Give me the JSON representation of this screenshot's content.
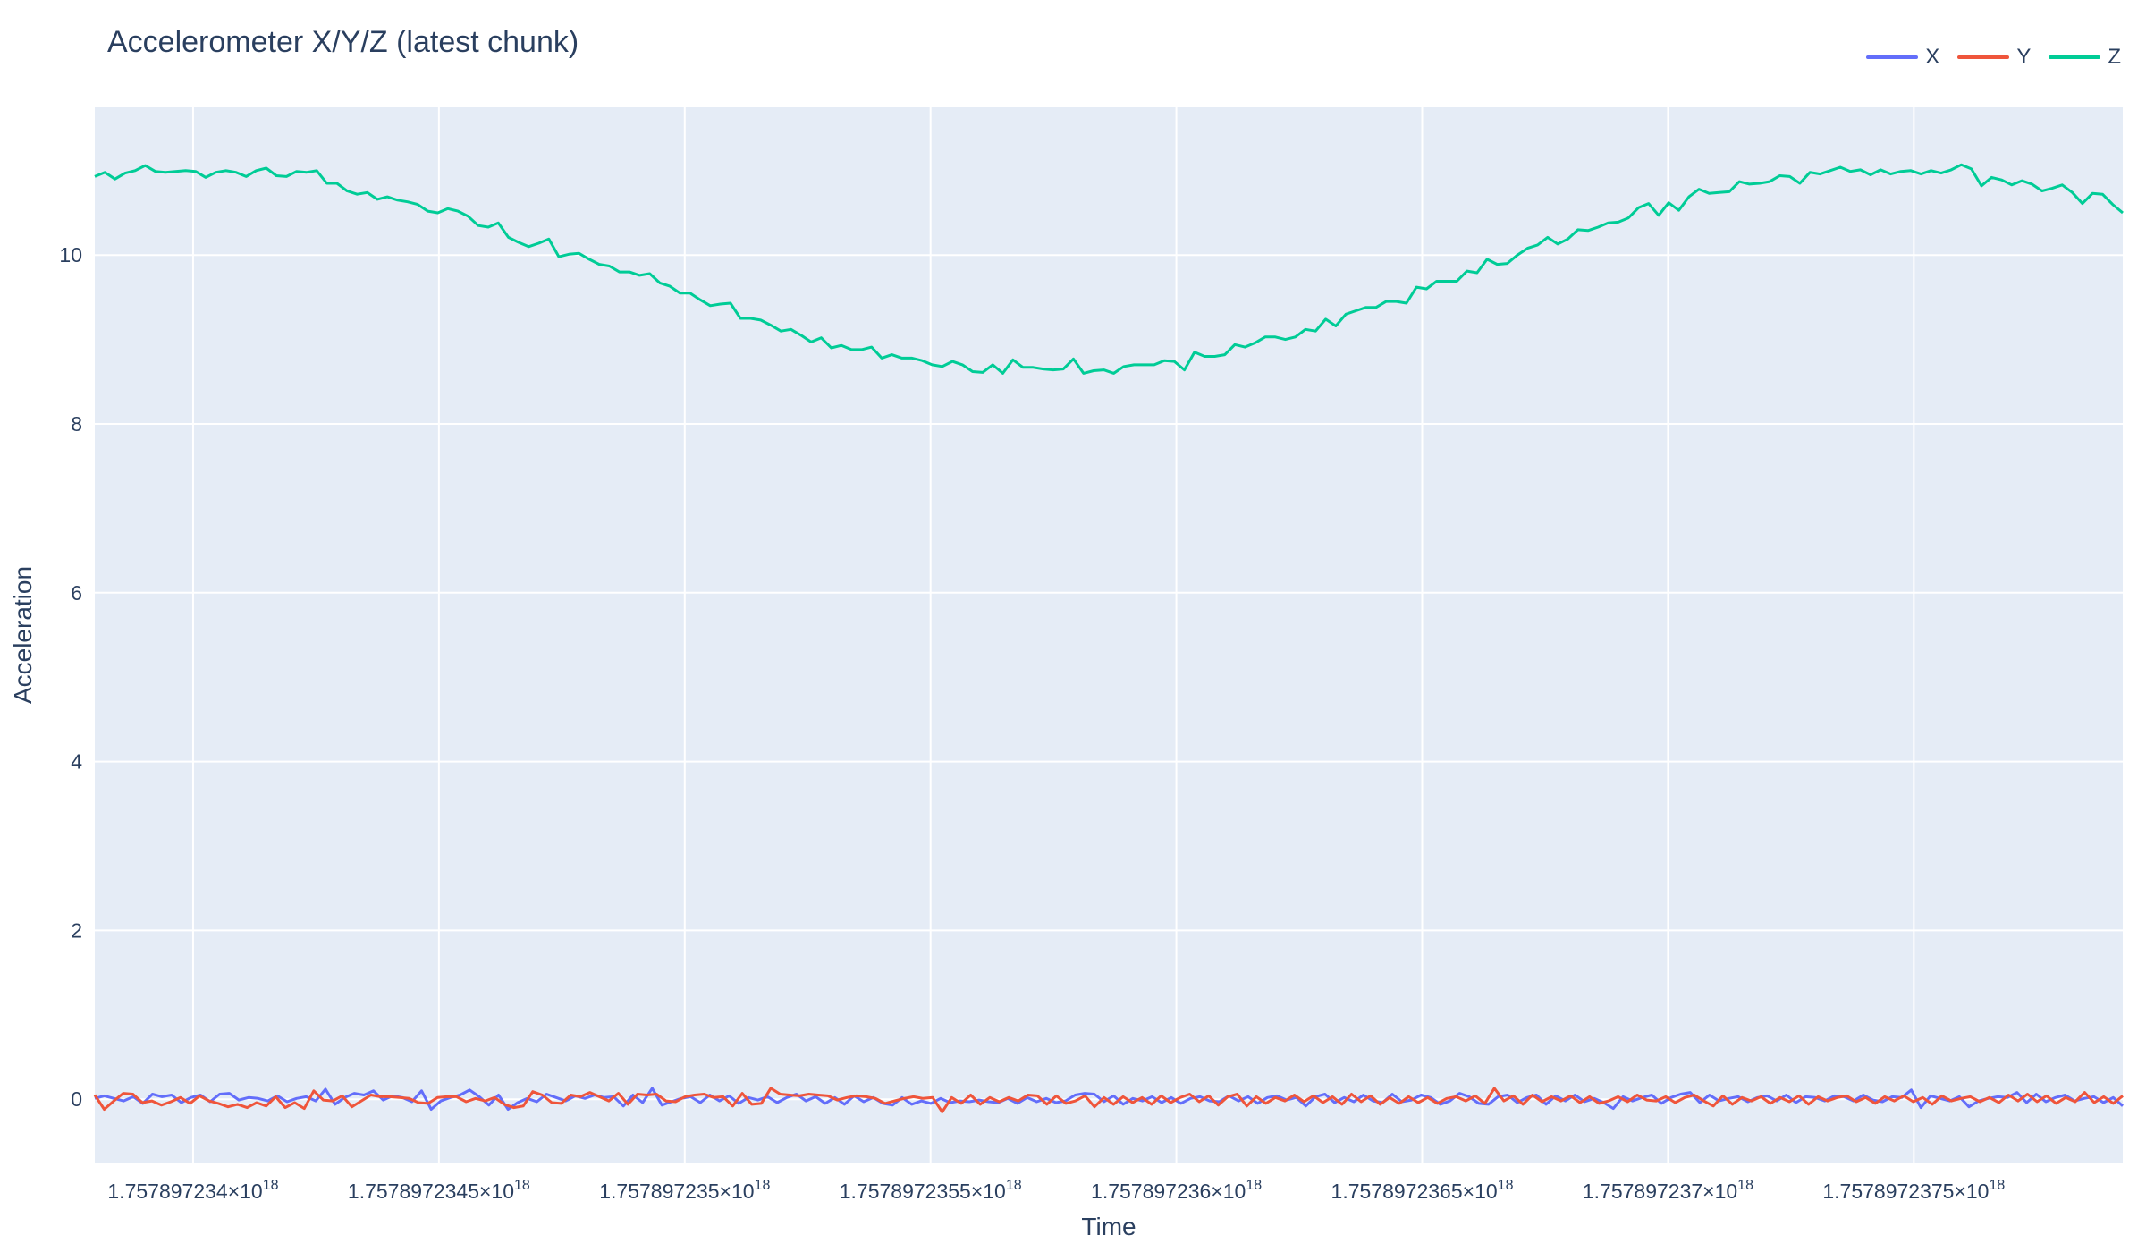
{
  "chart_data": {
    "type": "line",
    "title": "Accelerometer X/Y/Z (latest chunk)",
    "xlabel": "Time",
    "ylabel": "Acceleration",
    "x_range": [
      1.7578972338e+18,
      1.757897237925e+18
    ],
    "ylim": [
      -0.75,
      11.75
    ],
    "x_tick_values": [
      1.757897234e+18,
      1.7578972345e+18,
      1.757897235e+18,
      1.7578972355e+18,
      1.757897236e+18,
      1.7578972365e+18,
      1.757897237e+18,
      1.7578972375e+18
    ],
    "x_tick_labels": [
      [
        "1.757897234×10",
        "18"
      ],
      [
        "1.7578972345×10",
        "18"
      ],
      [
        "1.757897235×10",
        "18"
      ],
      [
        "1.7578972355×10",
        "18"
      ],
      [
        "1.757897236×10",
        "18"
      ],
      [
        "1.7578972365×10",
        "18"
      ],
      [
        "1.757897237×10",
        "18"
      ],
      [
        "1.7578972375×10",
        "18"
      ]
    ],
    "y_ticks": [
      0,
      2,
      4,
      6,
      8,
      10
    ],
    "y_tick_labels": [
      "0",
      "2",
      "4",
      "6",
      "8",
      "10"
    ],
    "grid": true,
    "legend_position": "top-right",
    "series": [
      {
        "name": "X",
        "color": "#636efa",
        "x_start": 1.7578972338e+18,
        "x_end": 1.757897237925e+18,
        "values": [
          0.01,
          0.04,
          0.01,
          -0.02,
          0.03,
          -0.05,
          0.06,
          0.03,
          0.05,
          -0.04,
          0.02,
          0.05,
          -0.03,
          0.06,
          0.07,
          -0.01,
          0.02,
          0.01,
          -0.02,
          0.04,
          -0.03,
          0.01,
          0.03,
          -0.02,
          0.12,
          -0.06,
          0.02,
          0.07,
          0.05,
          0.1,
          -0.01,
          0.04,
          0.02,
          -0.03,
          0.1,
          -0.12,
          -0.02,
          0.02,
          0.05,
          0.11,
          0.03,
          -0.07,
          0.05,
          -0.12,
          -0.04,
          0.01,
          -0.03,
          0.06,
          0.02,
          -0.02,
          0.04,
          0.01,
          0.05,
          0.02,
          0.03,
          -0.08,
          0.05,
          -0.04,
          0.13,
          -0.07,
          -0.03,
          0.01,
          0.03,
          -0.04,
          0.05,
          -0.02,
          0.04,
          -0.05,
          0.02,
          -0.01,
          0.03,
          -0.04,
          0.02,
          0.06,
          -0.02,
          0.03,
          -0.05,
          0.02,
          -0.06,
          0.04,
          -0.03,
          0.02,
          -0.05,
          -0.07,
          0.02,
          -0.06,
          -0.02,
          -0.05,
          0.01,
          -0.04,
          -0.02,
          -0.03,
          -0.01,
          -0.03,
          -0.04,
          0.01,
          -0.05,
          0.02,
          -0.03,
          0.01,
          -0.04,
          -0.02,
          0.05,
          0.07,
          0.06,
          -0.03,
          0.04,
          -0.06,
          0.01,
          -0.02,
          0.03,
          -0.04,
          0.02,
          -0.05,
          0.01,
          0.03,
          -0.02,
          -0.03,
          0.04,
          -0.02,
          0.03,
          -0.05,
          0.02,
          0.04,
          -0.01,
          0.02,
          -0.08,
          0.03,
          0.06,
          -0.04,
          0.02,
          -0.03,
          0.05,
          -0.02,
          -0.04,
          0.06,
          -0.03,
          -0.01,
          0.05,
          0.02,
          -0.06,
          -0.02,
          0.07,
          0.03,
          -0.05,
          -0.06,
          0.03,
          0.05,
          -0.04,
          0.02,
          0.05,
          -0.06,
          0.04,
          -0.02,
          0.05,
          -0.03,
          0.01,
          -0.04,
          -0.11,
          0.03,
          -0.02,
          0.02,
          0.05,
          -0.05,
          0.02,
          0.06,
          0.08,
          -0.04,
          0.05,
          -0.02,
          0.01,
          0.03,
          -0.03,
          0.02,
          0.04,
          -0.02,
          0.05,
          -0.04,
          0.03,
          0.02,
          -0.02,
          0.04,
          0.03,
          -0.02,
          0.05,
          -0.01,
          -0.03,
          0.03,
          0.02,
          0.11,
          -0.1,
          0.04,
          0.01,
          -0.02,
          0.03,
          -0.09,
          -0.02,
          0.01,
          0.03,
          0.02,
          0.08,
          -0.04,
          0.06,
          -0.03,
          0.02,
          0.05,
          -0.02,
          0.01,
          0.03,
          -0.04,
          0.02,
          -0.08
        ],
        "_": ""
      },
      {
        "name": "Y",
        "color": "#ef553b",
        "x_start": 1.7578972338e+18,
        "x_end": 1.757897237925e+18,
        "values": [
          0.05,
          -0.12,
          -0.02,
          0.07,
          0.06,
          -0.04,
          -0.02,
          -0.07,
          -0.03,
          0.02,
          -0.05,
          0.04,
          -0.02,
          -0.05,
          -0.09,
          -0.06,
          -0.1,
          -0.04,
          -0.08,
          0.03,
          -0.1,
          -0.04,
          -0.11,
          0.1,
          -0.01,
          -0.02,
          0.04,
          -0.09,
          -0.02,
          0.05,
          0.03,
          0.03,
          0.02,
          0.01,
          -0.04,
          -0.05,
          0.02,
          0.03,
          0.03,
          -0.03,
          0.01,
          -0.02,
          0.02,
          -0.06,
          -0.1,
          -0.08,
          0.09,
          0.05,
          -0.04,
          -0.05,
          0.05,
          0.03,
          0.08,
          0.03,
          -0.02,
          0.07,
          -0.06,
          0.06,
          0.05,
          0.06,
          -0.02,
          -0.03,
          0.03,
          0.05,
          0.06,
          0.02,
          0.03,
          -0.08,
          0.07,
          -0.06,
          -0.05,
          0.13,
          0.06,
          0.05,
          0.04,
          0.06,
          0.05,
          0.04,
          -0.01,
          0.02,
          0.04,
          0.03,
          0.01,
          -0.05,
          -0.02,
          0.01,
          0.03,
          0.01,
          0.02,
          -0.15,
          0.02,
          -0.05,
          0.05,
          -0.06,
          0.02,
          -0.03,
          0.02,
          -0.02,
          0.05,
          0.04,
          -0.06,
          0.04,
          -0.05,
          -0.02,
          0.04,
          -0.09,
          0.02,
          -0.06,
          0.03,
          -0.04,
          0.02,
          -0.06,
          0.04,
          -0.04,
          0.02,
          0.06,
          -0.03,
          0.04,
          -0.07,
          0.03,
          0.06,
          -0.08,
          0.03,
          -0.05,
          0.02,
          -0.02,
          0.05,
          -0.03,
          0.04,
          -0.04,
          0.03,
          -0.06,
          0.06,
          -0.03,
          0.04,
          -0.06,
          0.02,
          -0.05,
          0.03,
          -0.04,
          0.02,
          -0.05,
          0.01,
          0.03,
          -0.02,
          0.04,
          -0.05,
          0.13,
          -0.02,
          0.04,
          -0.06,
          0.05,
          -0.03,
          0.03,
          -0.02,
          0.04,
          -0.04,
          0.03,
          -0.05,
          -0.02,
          0.03,
          -0.03,
          0.05,
          -0.01,
          -0.02,
          0.03,
          -0.04,
          0.02,
          0.05,
          -0.02,
          -0.08,
          0.04,
          -0.06,
          0.02,
          -0.02,
          0.03,
          -0.05,
          0.02,
          -0.03,
          0.04,
          -0.06,
          0.03,
          -0.02,
          0.02,
          0.04,
          -0.03,
          0.02,
          -0.05,
          0.03,
          -0.02,
          0.04,
          -0.03,
          0.02,
          -0.06,
          0.04,
          -0.02,
          0.01,
          0.03,
          -0.03,
          0.02,
          -0.04,
          0.05,
          -0.02,
          0.06,
          -0.03,
          0.04,
          -0.05,
          0.02,
          -0.03,
          0.08,
          -0.04,
          0.03,
          -0.05,
          0.04
        ],
        "_": ""
      },
      {
        "name": "Z",
        "color": "#00cc96",
        "x_start": 1.7578972338e+18,
        "x_end": 1.757897237925e+18,
        "values": [
          10.93,
          10.98,
          10.9,
          10.97,
          11.0,
          11.06,
          10.99,
          10.98,
          10.99,
          11.0,
          10.99,
          10.92,
          10.98,
          11.0,
          10.98,
          10.93,
          11.0,
          11.03,
          10.94,
          10.93,
          10.99,
          10.98,
          11.0,
          10.85,
          10.85,
          10.76,
          10.72,
          10.74,
          10.66,
          10.69,
          10.65,
          10.63,
          10.6,
          10.52,
          10.5,
          10.55,
          10.52,
          10.46,
          10.35,
          10.33,
          10.38,
          10.21,
          10.15,
          10.1,
          10.14,
          10.19,
          9.98,
          10.01,
          10.02,
          9.95,
          9.89,
          9.87,
          9.8,
          9.8,
          9.76,
          9.78,
          9.67,
          9.63,
          9.55,
          9.55,
          9.47,
          9.4,
          9.42,
          9.43,
          9.25,
          9.25,
          9.23,
          9.17,
          9.1,
          9.12,
          9.05,
          8.97,
          9.02,
          8.9,
          8.93,
          8.88,
          8.88,
          8.91,
          8.78,
          8.82,
          8.78,
          8.78,
          8.75,
          8.7,
          8.68,
          8.74,
          8.7,
          8.62,
          8.61,
          8.7,
          8.6,
          8.76,
          8.67,
          8.67,
          8.65,
          8.64,
          8.65,
          8.77,
          8.6,
          8.63,
          8.64,
          8.6,
          8.68,
          8.7,
          8.7,
          8.7,
          8.75,
          8.74,
          8.64,
          8.85,
          8.8,
          8.8,
          8.82,
          8.94,
          8.91,
          8.96,
          9.03,
          9.03,
          9.0,
          9.03,
          9.12,
          9.1,
          9.24,
          9.16,
          9.3,
          9.34,
          9.38,
          9.38,
          9.45,
          9.45,
          9.43,
          9.62,
          9.6,
          9.69,
          9.69,
          9.69,
          9.81,
          9.79,
          9.95,
          9.89,
          9.9,
          10.0,
          10.08,
          10.12,
          10.21,
          10.13,
          10.19,
          10.3,
          10.29,
          10.33,
          10.38,
          10.39,
          10.44,
          10.56,
          10.61,
          10.47,
          10.62,
          10.53,
          10.69,
          10.78,
          10.73,
          10.74,
          10.75,
          10.87,
          10.84,
          10.85,
          10.87,
          10.94,
          10.93,
          10.85,
          10.98,
          10.96,
          11.0,
          11.04,
          10.99,
          11.01,
          10.95,
          11.01,
          10.96,
          10.99,
          11.0,
          10.96,
          11.0,
          10.97,
          11.01,
          11.07,
          11.02,
          10.82,
          10.92,
          10.89,
          10.83,
          10.88,
          10.84,
          10.76,
          10.79,
          10.83,
          10.74,
          10.61,
          10.73,
          10.72,
          10.6,
          10.5
        ],
        "_": ""
      }
    ]
  }
}
